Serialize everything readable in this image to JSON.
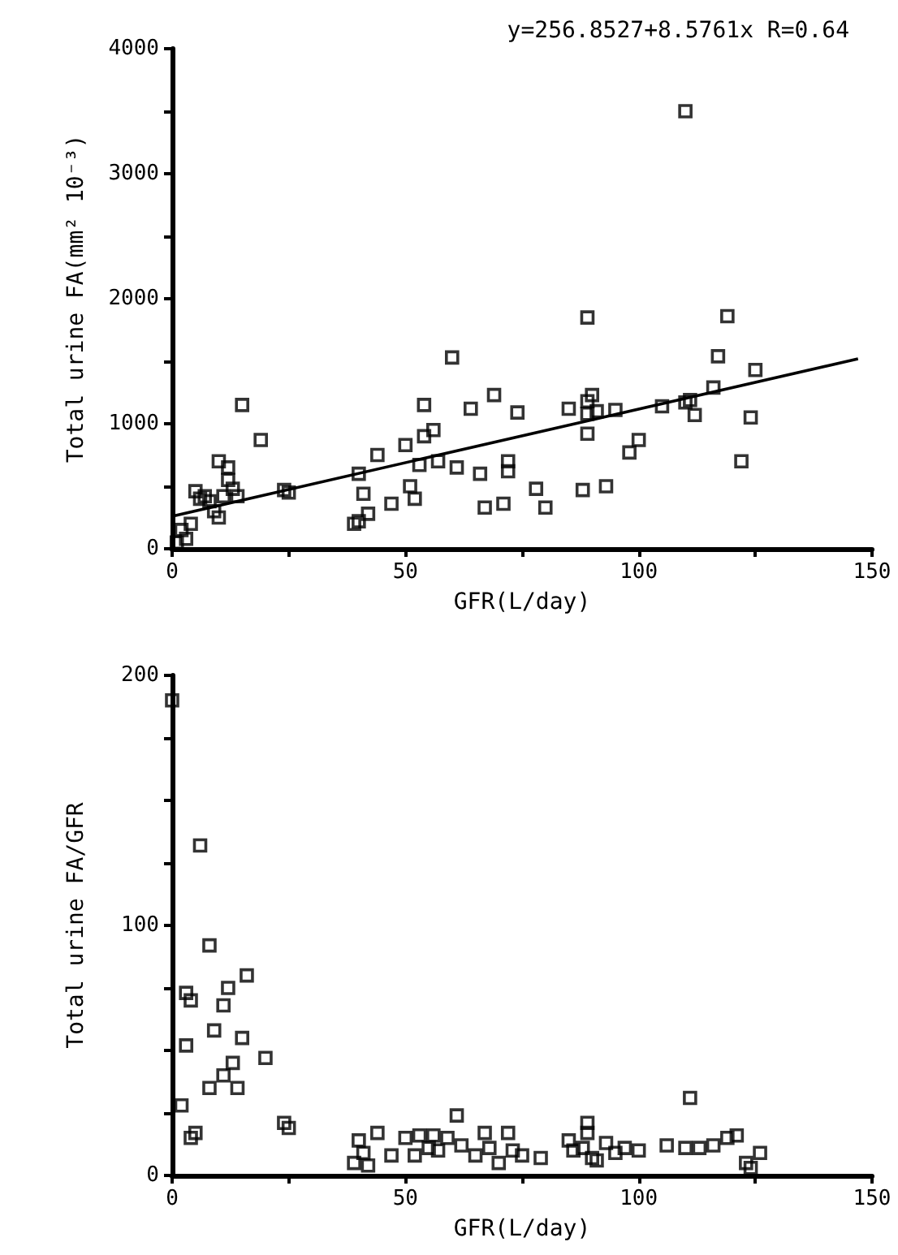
{
  "chart_data": [
    {
      "type": "scatter",
      "xlabel": "GFR(L/day)",
      "ylabel": "Total urine FA(mm² 10⁻³)",
      "annotations": [
        "y=256.8527+8.5761x R=0.64"
      ],
      "marker": "square",
      "grid": false,
      "xlim": [
        0,
        150
      ],
      "ylim": [
        0,
        4000
      ],
      "xticks": [
        0,
        {
          "value": 25,
          "label": null
        },
        50,
        {
          "value": 75,
          "label": null
        },
        100,
        {
          "value": 125,
          "label": null
        },
        150
      ],
      "yticks": [
        0,
        {
          "value": 500,
          "label": null
        },
        1000,
        {
          "value": 1500,
          "label": null
        },
        2000,
        {
          "value": 2500,
          "label": null
        },
        3000,
        {
          "value": 3500,
          "label": null
        },
        4000
      ],
      "series": [
        {
          "color": "#000000",
          "x": [
            1,
            2,
            3,
            4,
            5,
            6,
            7,
            8,
            9,
            10,
            11,
            12,
            13,
            10,
            12,
            14,
            15,
            19,
            24,
            25,
            39,
            40,
            41,
            40,
            42,
            44,
            47,
            50,
            51,
            52,
            53,
            54,
            54,
            56,
            57,
            60,
            61,
            64,
            66,
            67,
            69,
            71,
            72,
            72,
            74,
            78,
            80,
            85,
            88,
            89,
            89,
            89,
            90,
            89,
            91,
            93,
            95,
            98,
            100,
            105,
            110,
            111,
            112,
            110,
            116,
            117,
            119,
            122,
            124,
            125
          ],
          "values": [
            50,
            150,
            80,
            200,
            460,
            400,
            420,
            380,
            300,
            250,
            420,
            550,
            480,
            700,
            650,
            420,
            1150,
            870,
            470,
            450,
            200,
            220,
            440,
            600,
            280,
            750,
            360,
            830,
            500,
            400,
            670,
            1150,
            900,
            950,
            700,
            1530,
            650,
            1120,
            600,
            330,
            1230,
            360,
            700,
            620,
            1090,
            480,
            330,
            1120,
            470,
            1180,
            1080,
            920,
            1230,
            1850,
            1100,
            500,
            1110,
            770,
            870,
            1140,
            1170,
            1190,
            1070,
            3500,
            1290,
            1540,
            1860,
            700,
            1050,
            1430
          ]
        },
        {
          "type": "line",
          "color": "#000000",
          "marker": "none",
          "line_style": "solid",
          "x": [
            0,
            147
          ],
          "values": [
            260,
            1520
          ]
        }
      ]
    },
    {
      "type": "scatter",
      "xlabel": "GFR(L/day)",
      "ylabel": "Total urine FA/GFR",
      "marker": "square",
      "grid": false,
      "xlim": [
        0,
        150
      ],
      "ylim": [
        0,
        200
      ],
      "xticks": [
        0,
        {
          "value": 25,
          "label": null
        },
        50,
        {
          "value": 75,
          "label": null
        },
        100,
        {
          "value": 125,
          "label": null
        },
        150
      ],
      "yticks": [
        0,
        {
          "value": 25,
          "label": null
        },
        {
          "value": 50,
          "label": null
        },
        {
          "value": 75,
          "label": null
        },
        100,
        {
          "value": 125,
          "label": null
        },
        {
          "value": 150,
          "label": null
        },
        {
          "value": 175,
          "label": null
        },
        200
      ],
      "series": [
        {
          "color": "#000000",
          "x": [
            0,
            2,
            3,
            4,
            3,
            4,
            5,
            6,
            8,
            9,
            8,
            11,
            11,
            12,
            13,
            14,
            15,
            16,
            20,
            24,
            25,
            39,
            40,
            41,
            42,
            44,
            47,
            50,
            52,
            53,
            55,
            56,
            57,
            59,
            61,
            62,
            65,
            67,
            68,
            70,
            72,
            73,
            75,
            79,
            85,
            86,
            88,
            89,
            89,
            90,
            91,
            93,
            95,
            97,
            100,
            106,
            110,
            111,
            113,
            116,
            119,
            121,
            123,
            124,
            126
          ],
          "values": [
            190,
            28,
            73,
            70,
            52,
            15,
            17,
            132,
            92,
            58,
            35,
            40,
            68,
            75,
            45,
            35,
            55,
            80,
            47,
            21,
            19,
            5,
            14,
            9,
            4,
            17,
            8,
            15,
            8,
            16,
            11,
            16,
            10,
            15,
            24,
            12,
            8,
            17,
            11,
            5,
            17,
            10,
            8,
            7,
            14,
            10,
            11,
            17,
            21,
            7,
            6,
            13,
            9,
            11,
            10,
            12,
            11,
            31,
            11,
            12,
            15,
            16,
            5,
            3,
            9
          ]
        }
      ]
    }
  ]
}
